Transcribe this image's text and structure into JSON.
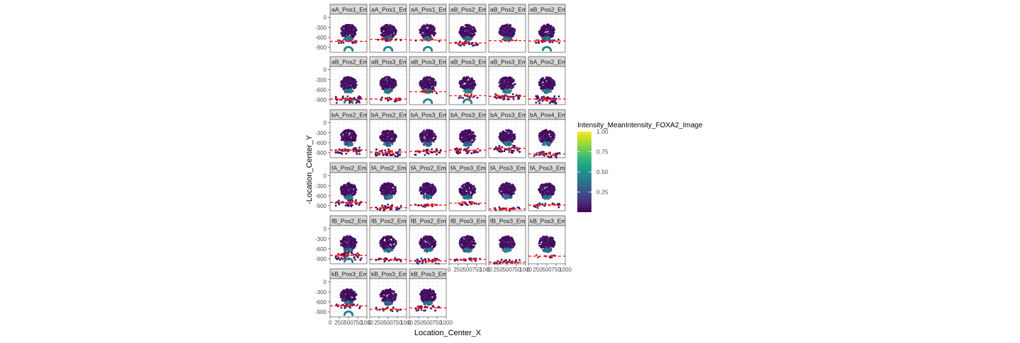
{
  "chart_data": {
    "type": "scatter",
    "xlabel": "Location_Center_X",
    "ylabel": "-Location_Center_Y",
    "xlim": [
      0,
      1000
    ],
    "ylim": [
      -1050,
      100
    ],
    "x_ticks": [
      0,
      250,
      500,
      750,
      1000
    ],
    "x_tick_labels": [
      "0",
      "250",
      "500",
      "750",
      "1000"
    ],
    "y_ticks": [
      0,
      -300,
      -600,
      -900
    ],
    "y_tick_labels": [
      "0",
      "-300",
      "-600",
      "-900"
    ],
    "grid": true,
    "legend": {
      "title": "Intensity_MeanIntensity_FOXA2_Image",
      "position": "right",
      "colormap": "viridis",
      "range": [
        0,
        1
      ],
      "ticks": [
        1.0,
        0.75,
        0.5,
        0.25
      ],
      "tick_labels": [
        "1.00",
        "0.75",
        "0.50",
        "0.25"
      ]
    },
    "reference_line": {
      "style": "dashed",
      "color": "#ff0000"
    },
    "panels": [
      {
        "label": "aA_Pos1_Em",
        "hline": -720,
        "lobe": "big",
        "scatter": 0.2
      },
      {
        "label": "aA_Pos1_Em",
        "hline": -660,
        "lobe": "big",
        "scatter": 0.2
      },
      {
        "label": "aA_Pos1_Em",
        "hline": -680,
        "lobe": "small",
        "scatter": 0.05
      },
      {
        "label": "aB_Pos2_Em",
        "hline": -770,
        "lobe": "none",
        "scatter": 0.4
      },
      {
        "label": "aB_Pos2_Em",
        "hline": -700,
        "lobe": "none",
        "scatter": 0.05
      },
      {
        "label": "aB_Pos2_Em",
        "hline": -710,
        "lobe": "small",
        "scatter": 0.3
      },
      {
        "label": "aB_Pos2_Em",
        "hline": -880,
        "lobe": "small",
        "scatter": 0.8
      },
      {
        "label": "aB_Pos3_Em",
        "hline": -880,
        "lobe": "none",
        "scatter": 0.3
      },
      {
        "label": "aB_Pos3_Em",
        "hline": -660,
        "lobe": "small",
        "scatter": 0.1
      },
      {
        "label": "aB_Pos3_Em",
        "hline": -780,
        "lobe": "small",
        "scatter": 0.3
      },
      {
        "label": "aB_Pos3_Em",
        "hline": -800,
        "lobe": "none",
        "scatter": 0.6
      },
      {
        "label": "bA_Pos2_Em",
        "hline": -880,
        "lobe": "none",
        "scatter": 0.9
      },
      {
        "label": "bA_Pos2_Em",
        "hline": -820,
        "lobe": "none",
        "scatter": 0.7
      },
      {
        "label": "bA_Pos2_Em",
        "hline": -880,
        "lobe": "none",
        "scatter": 0.8
      },
      {
        "label": "bA_Pos3_Em",
        "hline": -860,
        "lobe": "none",
        "scatter": 0.6
      },
      {
        "label": "bA_Pos3_Em",
        "hline": -820,
        "lobe": "none",
        "scatter": 0.6
      },
      {
        "label": "bA_Pos3_Em",
        "hline": -770,
        "lobe": "none",
        "scatter": 0.8
      },
      {
        "label": "bA_Pos4_Em",
        "hline": -940,
        "lobe": "none",
        "scatter": 0.6
      },
      {
        "label": "fA_Pos2_Em",
        "hline": -800,
        "lobe": "none",
        "scatter": 0.8
      },
      {
        "label": "fA_Pos2_Em",
        "hline": -960,
        "lobe": "none",
        "scatter": 0.9
      },
      {
        "label": "fA_Pos2_Em",
        "hline": -880,
        "lobe": "none",
        "scatter": 0.2
      },
      {
        "label": "fA_Pos3_Em",
        "hline": -820,
        "lobe": "none",
        "scatter": 0.3
      },
      {
        "label": "fA_Pos3_Em",
        "hline": -1000,
        "lobe": "none",
        "scatter": 0.5
      },
      {
        "label": "fA_Pos3_Em",
        "hline": -880,
        "lobe": "none",
        "scatter": 0.4
      },
      {
        "label": "fB_Pos2_Em",
        "hline": -800,
        "lobe": "small",
        "scatter": 0.9
      },
      {
        "label": "fB_Pos2_Em",
        "hline": -920,
        "lobe": "none",
        "scatter": 0.3
      },
      {
        "label": "fB_Pos2_Em",
        "hline": -960,
        "lobe": "none",
        "scatter": 0.6
      },
      {
        "label": "fB_Pos3_Em",
        "hline": -920,
        "lobe": "none",
        "scatter": 0.2
      },
      {
        "label": "fB_Pos3_Em",
        "hline": -1000,
        "lobe": "none",
        "scatter": 0.7
      },
      {
        "label": "kB_Pos3_Em",
        "hline": -820,
        "lobe": "none",
        "scatter": 0.1
      },
      {
        "label": "kB_Pos3_Em",
        "hline": -720,
        "lobe": "big",
        "scatter": 0.3
      },
      {
        "label": "kB_Pos3_Em",
        "hline": -820,
        "lobe": "none",
        "scatter": 0.4
      },
      {
        "label": "kB_Pos3_Em",
        "hline": -780,
        "lobe": "none",
        "scatter": 0.5
      }
    ]
  }
}
